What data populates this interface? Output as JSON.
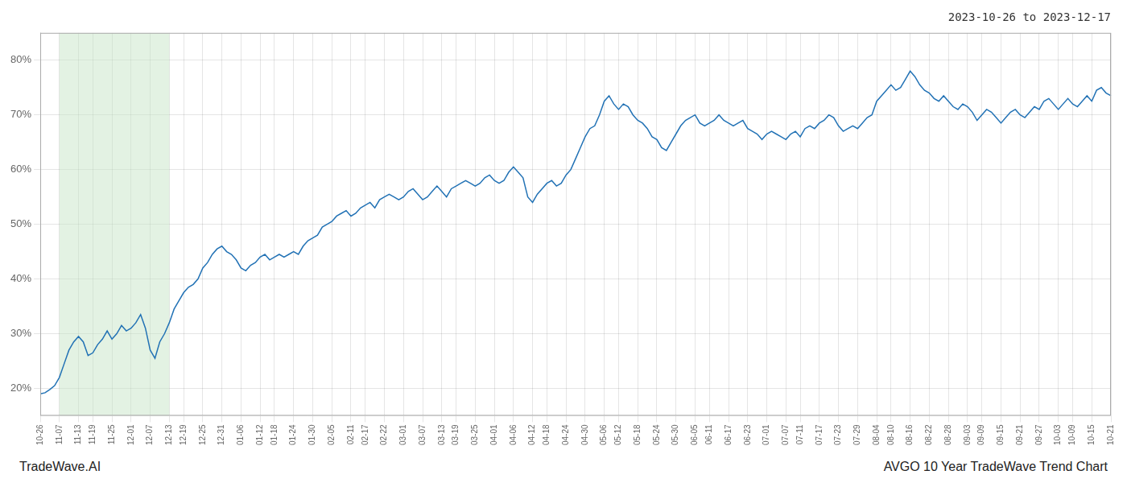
{
  "chart_data": {
    "type": "line",
    "title": "2023-10-26 to 2023-12-17",
    "annotations": [
      "TradeWave.AI",
      "AVGO 10 Year TradeWave Trend Chart"
    ],
    "color": "#2272b5",
    "grid": true,
    "highlight": {
      "from": "11-07",
      "to": "12-13",
      "color": "#c8e6c8"
    },
    "ylim": [
      15,
      85
    ],
    "yticks": [
      {
        "value": 20,
        "label": "20%"
      },
      {
        "value": 30,
        "label": "30%"
      },
      {
        "value": 40,
        "label": "40%"
      },
      {
        "value": 50,
        "label": "50%"
      },
      {
        "value": 60,
        "label": "60%"
      },
      {
        "value": 70,
        "label": "70%"
      },
      {
        "value": 80,
        "label": "80%"
      }
    ],
    "categories": [
      "10-26",
      null,
      null,
      null,
      "11-07",
      null,
      null,
      null,
      "11-13",
      null,
      null,
      "11-19",
      null,
      null,
      null,
      "11-25",
      null,
      null,
      null,
      "12-01",
      null,
      null,
      null,
      "12-07",
      null,
      null,
      null,
      "12-13",
      null,
      null,
      "12-19",
      null,
      null,
      null,
      "12-25",
      null,
      null,
      null,
      "12-31",
      null,
      null,
      null,
      "01-06",
      null,
      null,
      null,
      "01-12",
      null,
      null,
      "01-18",
      null,
      null,
      null,
      "01-24",
      null,
      null,
      null,
      "01-30",
      null,
      null,
      null,
      "02-05",
      null,
      null,
      null,
      "02-11",
      null,
      null,
      "02-17",
      null,
      null,
      null,
      "02-22",
      null,
      null,
      null,
      "03-01",
      null,
      null,
      null,
      "03-07",
      null,
      null,
      null,
      "03-13",
      null,
      null,
      "03-19",
      null,
      null,
      null,
      "03-25",
      null,
      null,
      null,
      "04-01",
      null,
      null,
      null,
      "04-06",
      null,
      null,
      null,
      "04-12",
      null,
      null,
      "04-18",
      null,
      null,
      null,
      "04-24",
      null,
      null,
      null,
      "04-30",
      null,
      null,
      null,
      "05-06",
      null,
      null,
      "05-12",
      null,
      null,
      null,
      "05-18",
      null,
      null,
      null,
      "05-24",
      null,
      null,
      null,
      "05-30",
      null,
      null,
      null,
      "06-05",
      null,
      null,
      "06-11",
      null,
      null,
      null,
      "06-17",
      null,
      null,
      null,
      "06-23",
      null,
      null,
      null,
      "07-01",
      null,
      null,
      null,
      "07-07",
      null,
      null,
      "07-11",
      null,
      null,
      null,
      "07-17",
      null,
      null,
      null,
      "07-23",
      null,
      null,
      null,
      "07-29",
      null,
      null,
      null,
      "08-04",
      null,
      null,
      "08-10",
      null,
      null,
      null,
      "08-16",
      null,
      null,
      null,
      "08-22",
      null,
      null,
      null,
      "08-28",
      null,
      null,
      null,
      "09-03",
      null,
      null,
      "09-09",
      null,
      null,
      null,
      "09-15",
      null,
      null,
      null,
      "09-21",
      null,
      null,
      null,
      "09-27",
      null,
      null,
      null,
      "10-03",
      null,
      null,
      "10-09",
      null,
      null,
      null,
      "10-15",
      null,
      null,
      null,
      "10-21"
    ],
    "values": [
      19.0,
      19.2,
      19.8,
      20.5,
      22.0,
      24.5,
      27.0,
      28.5,
      29.5,
      28.5,
      26.0,
      26.5,
      28.0,
      29.0,
      30.5,
      29.0,
      30.0,
      31.5,
      30.5,
      31.0,
      32.0,
      33.5,
      31.0,
      27.0,
      25.5,
      28.5,
      30.0,
      32.0,
      34.5,
      36.0,
      37.5,
      38.5,
      39.0,
      40.0,
      42.0,
      43.0,
      44.5,
      45.5,
      46.0,
      45.0,
      44.5,
      43.5,
      42.0,
      41.5,
      42.5,
      43.0,
      44.0,
      44.5,
      43.5,
      44.0,
      44.5,
      44.0,
      44.5,
      45.0,
      44.5,
      46.0,
      47.0,
      47.5,
      48.0,
      49.5,
      50.0,
      50.5,
      51.5,
      52.0,
      52.5,
      51.5,
      52.0,
      53.0,
      53.5,
      54.0,
      53.0,
      54.5,
      55.0,
      55.5,
      55.0,
      54.5,
      55.0,
      56.0,
      56.5,
      55.5,
      54.5,
      55.0,
      56.0,
      57.0,
      56.0,
      55.0,
      56.5,
      57.0,
      57.5,
      58.0,
      57.5,
      57.0,
      57.5,
      58.5,
      59.0,
      58.0,
      57.5,
      58.0,
      59.5,
      60.5,
      59.5,
      58.5,
      55.0,
      54.0,
      55.5,
      56.5,
      57.5,
      58.0,
      57.0,
      57.5,
      59.0,
      60.0,
      62.0,
      64.0,
      66.0,
      67.5,
      68.0,
      70.0,
      72.5,
      73.5,
      72.0,
      71.0,
      72.0,
      71.5,
      70.0,
      69.0,
      68.5,
      67.5,
      66.0,
      65.5,
      64.0,
      63.5,
      65.0,
      66.5,
      68.0,
      69.0,
      69.5,
      70.0,
      68.5,
      68.0,
      68.5,
      69.0,
      70.0,
      69.0,
      68.5,
      68.0,
      68.5,
      69.0,
      67.5,
      67.0,
      66.5,
      65.5,
      66.5,
      67.0,
      66.5,
      66.0,
      65.5,
      66.5,
      67.0,
      66.0,
      67.5,
      68.0,
      67.5,
      68.5,
      69.0,
      70.0,
      69.5,
      68.0,
      67.0,
      67.5,
      68.0,
      67.5,
      68.5,
      69.5,
      70.0,
      72.5,
      73.5,
      74.5,
      75.5,
      74.5,
      75.0,
      76.5,
      78.0,
      77.0,
      75.5,
      74.5,
      74.0,
      73.0,
      72.5,
      73.5,
      72.5,
      71.5,
      71.0,
      72.0,
      71.5,
      70.5,
      69.0,
      70.0,
      71.0,
      70.5,
      69.5,
      68.5,
      69.5,
      70.5,
      71.0,
      70.0,
      69.5,
      70.5,
      71.5,
      71.0,
      72.5,
      73.0,
      72.0,
      71.0,
      72.0,
      73.0,
      72.0,
      71.5,
      72.5,
      73.5,
      72.5,
      74.5,
      75.0,
      74.0,
      73.5
    ]
  }
}
